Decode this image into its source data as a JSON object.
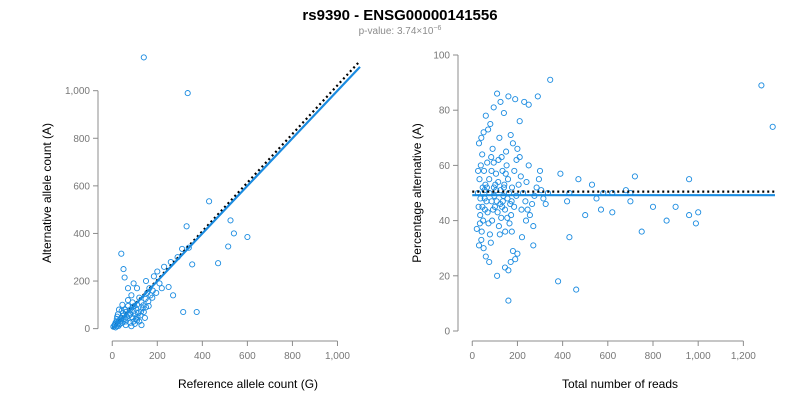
{
  "figure": {
    "title": "rs9390 - ENSG00000141556",
    "subtitle_prefix": "p-value: 3.74×10",
    "subtitle_exponent": "−6",
    "point_color": "#1a8be0",
    "fit_color": "#1a8be0",
    "reference_color": "#000000"
  },
  "chart_data": [
    {
      "type": "scatter",
      "xlabel": "Reference allele count (G)",
      "ylabel": "Alternative allele count (A)",
      "xlim": [
        -10,
        1100
      ],
      "ylim": [
        -10,
        1150
      ],
      "xticks": [
        0,
        200,
        400,
        600,
        800,
        1000
      ],
      "xtick_labels": [
        "0",
        "200",
        "400",
        "600",
        "800",
        "1,000"
      ],
      "yticks": [
        0,
        200,
        400,
        600,
        800,
        1000
      ],
      "ytick_labels": [
        "0",
        "200",
        "400",
        "600",
        "800",
        "1,000"
      ],
      "fit_line": {
        "x": [
          0,
          1100
        ],
        "y": [
          0,
          1100
        ]
      },
      "reference_line": {
        "x": [
          0,
          1100
        ],
        "y": [
          0,
          1125
        ]
      },
      "grid": false,
      "points": [
        [
          140,
          1140
        ],
        [
          335,
          990
        ],
        [
          430,
          535
        ],
        [
          525,
          455
        ],
        [
          540,
          400
        ],
        [
          515,
          345
        ],
        [
          600,
          385
        ],
        [
          470,
          275
        ],
        [
          330,
          430
        ],
        [
          340,
          340
        ],
        [
          355,
          270
        ],
        [
          375,
          70
        ],
        [
          315,
          70
        ],
        [
          220,
          170
        ],
        [
          200,
          240
        ],
        [
          185,
          220
        ],
        [
          230,
          260
        ],
        [
          260,
          280
        ],
        [
          290,
          300
        ],
        [
          310,
          335
        ],
        [
          250,
          175
        ],
        [
          270,
          140
        ],
        [
          40,
          315
        ],
        [
          50,
          250
        ],
        [
          55,
          215
        ],
        [
          70,
          120
        ],
        [
          90,
          90
        ],
        [
          100,
          60
        ],
        [
          110,
          100
        ],
        [
          120,
          130
        ],
        [
          130,
          110
        ],
        [
          150,
          90
        ],
        [
          155,
          150
        ],
        [
          160,
          115
        ],
        [
          170,
          140
        ],
        [
          180,
          160
        ],
        [
          140,
          70
        ],
        [
          145,
          45
        ],
        [
          120,
          30
        ],
        [
          100,
          20
        ],
        [
          80,
          25
        ],
        [
          60,
          30
        ],
        [
          35,
          20
        ],
        [
          20,
          40
        ],
        [
          25,
          60
        ],
        [
          30,
          80
        ],
        [
          45,
          100
        ],
        [
          60,
          70
        ],
        [
          75,
          55
        ],
        [
          85,
          140
        ],
        [
          95,
          75
        ],
        [
          105,
          40
        ],
        [
          115,
          65
        ],
        [
          125,
          55
        ],
        [
          135,
          85
        ],
        [
          90,
          110
        ],
        [
          70,
          95
        ],
        [
          50,
          55
        ],
        [
          40,
          45
        ],
        [
          30,
          35
        ],
        [
          15,
          25
        ],
        [
          10,
          15
        ],
        [
          20,
          10
        ],
        [
          25,
          20
        ],
        [
          35,
          30
        ],
        [
          45,
          25
        ],
        [
          55,
          40
        ],
        [
          65,
          50
        ],
        [
          80,
          60
        ],
        [
          95,
          30
        ],
        [
          110,
          35
        ],
        [
          60,
          15
        ],
        [
          15,
          5
        ],
        [
          5,
          8
        ],
        [
          12,
          18
        ],
        [
          18,
          28
        ],
        [
          28,
          12
        ],
        [
          38,
          38
        ],
        [
          48,
          65
        ],
        [
          58,
          80
        ],
        [
          68,
          42
        ],
        [
          78,
          78
        ],
        [
          88,
          48
        ],
        [
          98,
          95
        ],
        [
          105,
          85
        ],
        [
          112,
          50
        ],
        [
          128,
          72
        ],
        [
          138,
          98
        ],
        [
          148,
          125
        ],
        [
          162,
          95
        ],
        [
          178,
          130
        ],
        [
          195,
          150
        ],
        [
          210,
          190
        ],
        [
          165,
          170
        ],
        [
          150,
          200
        ],
        [
          95,
          190
        ],
        [
          110,
          170
        ],
        [
          70,
          170
        ],
        [
          85,
          10
        ],
        [
          130,
          15
        ],
        [
          22,
          50
        ],
        [
          42,
          75
        ]
      ]
    },
    {
      "type": "scatter",
      "xlabel": "Total number of reads",
      "ylabel": "Percentage alternative (A)",
      "xlim": [
        -10,
        1340
      ],
      "ylim": [
        0,
        100
      ],
      "xticks": [
        0,
        200,
        400,
        600,
        800,
        1000,
        1200
      ],
      "xtick_labels": [
        "0",
        "200",
        "400",
        "600",
        "800",
        "1,000",
        "1,200"
      ],
      "yticks": [
        0,
        20,
        40,
        60,
        80,
        100
      ],
      "ytick_labels": [
        "0",
        "20",
        "40",
        "60",
        "80",
        "100"
      ],
      "fit_line": {
        "x": [
          0,
          1340
        ],
        "y": [
          49.2,
          49.2
        ]
      },
      "reference_line": {
        "x": [
          0,
          1340
        ],
        "y": [
          50.5,
          50.5
        ]
      },
      "grid": false,
      "points": [
        [
          1280,
          89
        ],
        [
          1330,
          74
        ],
        [
          345,
          91
        ],
        [
          290,
          85
        ],
        [
          230,
          83
        ],
        [
          250,
          82
        ],
        [
          160,
          85
        ],
        [
          190,
          84
        ],
        [
          110,
          86
        ],
        [
          125,
          83
        ],
        [
          95,
          81
        ],
        [
          140,
          79
        ],
        [
          210,
          76
        ],
        [
          60,
          78
        ],
        [
          80,
          75
        ],
        [
          70,
          73
        ],
        [
          50,
          72
        ],
        [
          40,
          70
        ],
        [
          120,
          70
        ],
        [
          170,
          71
        ],
        [
          180,
          68
        ],
        [
          200,
          66
        ],
        [
          30,
          68
        ],
        [
          90,
          66
        ],
        [
          150,
          65
        ],
        [
          130,
          63
        ],
        [
          210,
          63
        ],
        [
          250,
          60
        ],
        [
          300,
          58
        ],
        [
          390,
          57
        ],
        [
          720,
          56
        ],
        [
          960,
          55
        ],
        [
          580,
          50
        ],
        [
          620,
          50
        ],
        [
          680,
          51
        ],
        [
          700,
          50
        ],
        [
          530,
          53
        ],
        [
          470,
          55
        ],
        [
          430,
          50
        ],
        [
          550,
          48
        ],
        [
          700,
          47
        ],
        [
          800,
          45
        ],
        [
          900,
          45
        ],
        [
          1000,
          43
        ],
        [
          960,
          42
        ],
        [
          990,
          39
        ],
        [
          860,
          40
        ],
        [
          750,
          36
        ],
        [
          570,
          44
        ],
        [
          620,
          43
        ],
        [
          500,
          42
        ],
        [
          430,
          34
        ],
        [
          420,
          47
        ],
        [
          380,
          18
        ],
        [
          460,
          15
        ],
        [
          270,
          38
        ],
        [
          270,
          31
        ],
        [
          220,
          34
        ],
        [
          200,
          28
        ],
        [
          180,
          29
        ],
        [
          160,
          22
        ],
        [
          170,
          25
        ],
        [
          190,
          26
        ],
        [
          110,
          20
        ],
        [
          160,
          11
        ],
        [
          145,
          23
        ],
        [
          75,
          25
        ],
        [
          60,
          27
        ],
        [
          50,
          30
        ],
        [
          40,
          33
        ],
        [
          30,
          31
        ],
        [
          20,
          37
        ],
        [
          35,
          42
        ],
        [
          45,
          45
        ],
        [
          55,
          48
        ],
        [
          65,
          52
        ],
        [
          75,
          55
        ],
        [
          85,
          58
        ],
        [
          95,
          61
        ],
        [
          105,
          57
        ],
        [
          115,
          54
        ],
        [
          125,
          51
        ],
        [
          135,
          47
        ],
        [
          145,
          44
        ],
        [
          155,
          41
        ],
        [
          165,
          39
        ],
        [
          175,
          36
        ],
        [
          185,
          45
        ],
        [
          195,
          49
        ],
        [
          205,
          53
        ],
        [
          215,
          56
        ],
        [
          225,
          50
        ],
        [
          235,
          47
        ],
        [
          245,
          44
        ],
        [
          255,
          42
        ],
        [
          265,
          46
        ],
        [
          275,
          49
        ],
        [
          285,
          52
        ],
        [
          295,
          55
        ],
        [
          305,
          51
        ],
        [
          315,
          48
        ],
        [
          325,
          46
        ],
        [
          335,
          50
        ],
        [
          25,
          50
        ],
        [
          32,
          55
        ],
        [
          38,
          60
        ],
        [
          44,
          64
        ],
        [
          52,
          58
        ],
        [
          58,
          53
        ],
        [
          63,
          47
        ],
        [
          68,
          43
        ],
        [
          72,
          39
        ],
        [
          78,
          35
        ],
        [
          82,
          32
        ],
        [
          88,
          40
        ],
        [
          92,
          44
        ],
        [
          98,
          49
        ],
        [
          102,
          53
        ],
        [
          108,
          47
        ],
        [
          112,
          43
        ],
        [
          118,
          38
        ],
        [
          122,
          35
        ],
        [
          128,
          41
        ],
        [
          132,
          45
        ],
        [
          138,
          49
        ],
        [
          142,
          53
        ],
        [
          148,
          57
        ],
        [
          152,
          60
        ],
        [
          158,
          55
        ],
        [
          162,
          50
        ],
        [
          168,
          46
        ],
        [
          172,
          42
        ],
        [
          28,
          45
        ],
        [
          34,
          39
        ],
        [
          42,
          36
        ],
        [
          48,
          40
        ],
        [
          54,
          51
        ],
        [
          66,
          61
        ],
        [
          84,
          63
        ],
        [
          100,
          45
        ],
        [
          116,
          62
        ],
        [
          134,
          58
        ],
        [
          146,
          36
        ],
        [
          176,
          52
        ],
        [
          186,
          58
        ],
        [
          196,
          62
        ],
        [
          218,
          44
        ],
        [
          238,
          40
        ],
        [
          240,
          54
        ],
        [
          26,
          58
        ],
        [
          36,
          48
        ],
        [
          46,
          52
        ],
        [
          56,
          44
        ],
        [
          76,
          50
        ],
        [
          86,
          47
        ],
        [
          96,
          52
        ],
        [
          106,
          51
        ],
        [
          124,
          46
        ],
        [
          140,
          52
        ],
        [
          156,
          48
        ],
        [
          174,
          47
        ]
      ]
    }
  ]
}
